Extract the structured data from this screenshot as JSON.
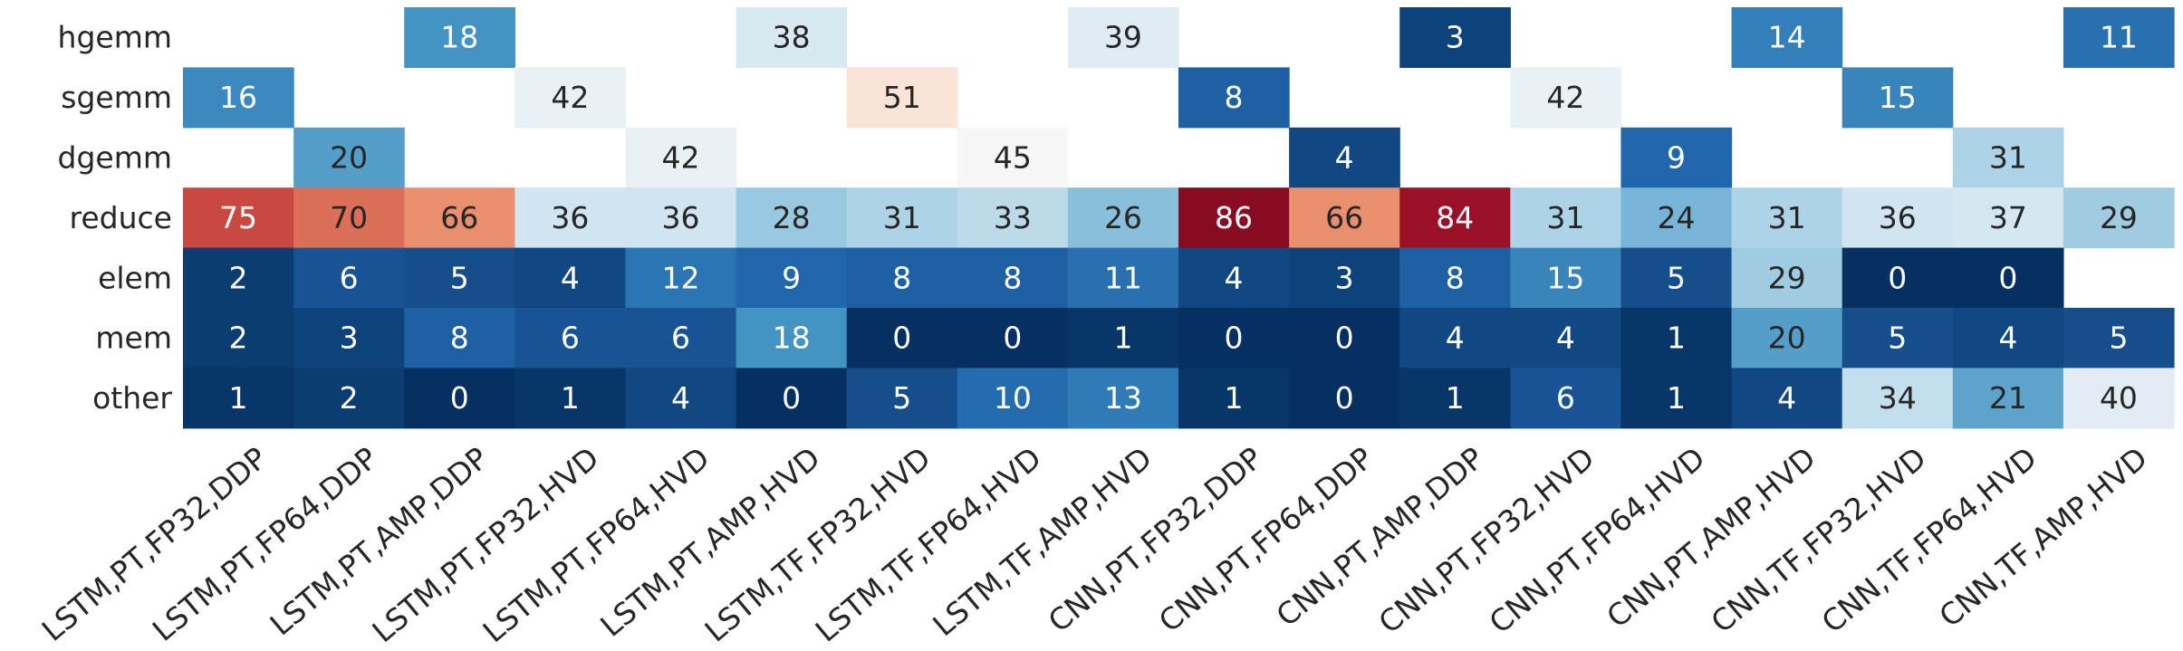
{
  "chart_data": {
    "type": "heatmap",
    "title": "",
    "xlabel": "",
    "ylabel": "",
    "rows": [
      "hgemm",
      "sgemm",
      "dgemm",
      "reduce",
      "elem",
      "mem",
      "other"
    ],
    "columns": [
      "LSTM,PT,FP32,DDP",
      "LSTM,PT,FP64,DDP",
      "LSTM,PT,AMP,DDP",
      "LSTM,PT,FP32,HVD",
      "LSTM,PT,FP64,HVD",
      "LSTM,PT,AMP,HVD",
      "LSTM,TF,FP32,HVD",
      "LSTM,TF,FP64,HVD",
      "LSTM,TF,AMP,HVD",
      "CNN,PT,FP32,DDP",
      "CNN,PT,FP64,DDP",
      "CNN,PT,AMP,DDP",
      "CNN,PT,FP32,HVD",
      "CNN,PT,FP64,HVD",
      "CNN,PT,AMP,HVD",
      "CNN,TF,FP32,HVD",
      "CNN,TF,FP64,HVD",
      "CNN,TF,AMP,HVD"
    ],
    "values": [
      [
        null,
        null,
        18,
        null,
        null,
        38,
        null,
        null,
        39,
        null,
        null,
        3,
        null,
        null,
        14,
        null,
        null,
        11
      ],
      [
        16,
        null,
        null,
        42,
        null,
        null,
        51,
        null,
        null,
        8,
        null,
        null,
        42,
        null,
        null,
        15,
        null,
        null
      ],
      [
        null,
        20,
        null,
        null,
        42,
        null,
        null,
        45,
        null,
        null,
        4,
        null,
        null,
        9,
        null,
        null,
        31,
        null
      ],
      [
        75,
        70,
        66,
        36,
        36,
        28,
        31,
        33,
        26,
        86,
        66,
        84,
        31,
        24,
        31,
        36,
        37,
        29
      ],
      [
        2,
        6,
        5,
        4,
        12,
        9,
        8,
        8,
        11,
        4,
        3,
        8,
        15,
        5,
        29,
        0,
        0,
        null
      ],
      [
        2,
        3,
        8,
        6,
        6,
        18,
        0,
        0,
        1,
        0,
        0,
        4,
        4,
        1,
        20,
        5,
        4,
        5
      ],
      [
        1,
        2,
        0,
        1,
        4,
        0,
        5,
        10,
        13,
        1,
        0,
        1,
        6,
        1,
        4,
        34,
        21,
        40
      ]
    ],
    "colormap": "RdBu_r",
    "value_range": [
      0,
      90
    ],
    "center": 45,
    "colorbar": false,
    "annotations": true,
    "empty_cells": "blank (white)"
  }
}
